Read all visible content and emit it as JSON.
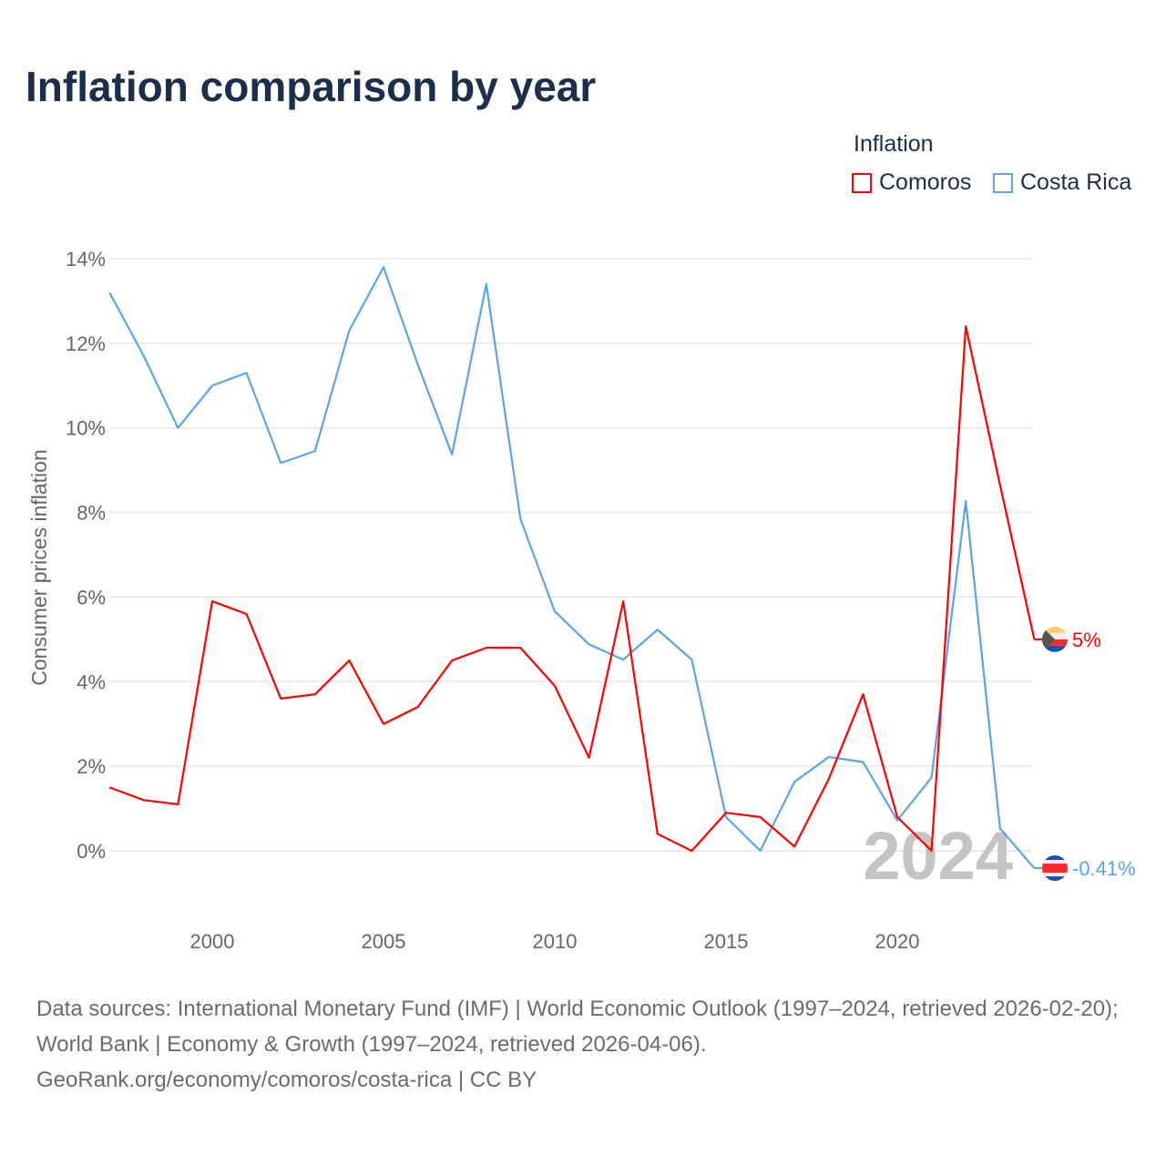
{
  "chart_data": {
    "type": "line",
    "title": "Inflation comparison by year",
    "xlabel": "",
    "ylabel": "Consumer prices inflation",
    "legend_title": "Inflation",
    "legend_position": "top-right",
    "x": [
      1997,
      1998,
      1999,
      2000,
      2001,
      2002,
      2003,
      2004,
      2005,
      2006,
      2007,
      2008,
      2009,
      2010,
      2011,
      2012,
      2013,
      2014,
      2015,
      2016,
      2017,
      2018,
      2019,
      2020,
      2021,
      2022,
      2023,
      2024
    ],
    "xticks": [
      "2000",
      "2005",
      "2010",
      "2015",
      "2020"
    ],
    "xtick_values": [
      2000,
      2005,
      2010,
      2015,
      2020
    ],
    "yticks": [
      "0%",
      "2%",
      "4%",
      "6%",
      "8%",
      "10%",
      "12%",
      "14%"
    ],
    "ytick_values": [
      0,
      2,
      4,
      6,
      8,
      10,
      12,
      14
    ],
    "xlim": [
      1997,
      2024
    ],
    "ylim": [
      -1.2,
      14.3
    ],
    "grid": true,
    "year_watermark": "2024",
    "series": [
      {
        "name": "Comoros",
        "color": "#ff0000",
        "end_label": "5%",
        "values": [
          1.5,
          1.2,
          1.1,
          5.9,
          5.6,
          3.6,
          3.7,
          4.5,
          3.0,
          3.4,
          4.5,
          4.8,
          4.8,
          3.9,
          2.2,
          5.9,
          0.4,
          0.0,
          0.9,
          0.8,
          0.1,
          1.7,
          3.7,
          0.8,
          0.0,
          12.4,
          8.65,
          5.0
        ]
      },
      {
        "name": "Costa Rica",
        "color": "#5aa5e8",
        "end_label": "-0.41%",
        "values": [
          13.2,
          11.7,
          10.0,
          11.0,
          11.3,
          9.17,
          9.45,
          12.3,
          13.8,
          11.5,
          9.37,
          13.4,
          7.84,
          5.66,
          4.88,
          4.52,
          5.23,
          4.52,
          0.8,
          0.0,
          1.63,
          2.22,
          2.1,
          0.72,
          1.73,
          8.27,
          0.53,
          -0.41
        ]
      }
    ]
  },
  "footer": {
    "line1": "Data sources: International Monetary Fund (IMF) | World Economic Outlook (1997–2024, retrieved 2026-02-20); World Bank | Economy & Growth (1997–2024, retrieved 2026-04-06).",
    "line2": "GeoRank.org/economy/comoros/costa-rica | CC BY"
  }
}
